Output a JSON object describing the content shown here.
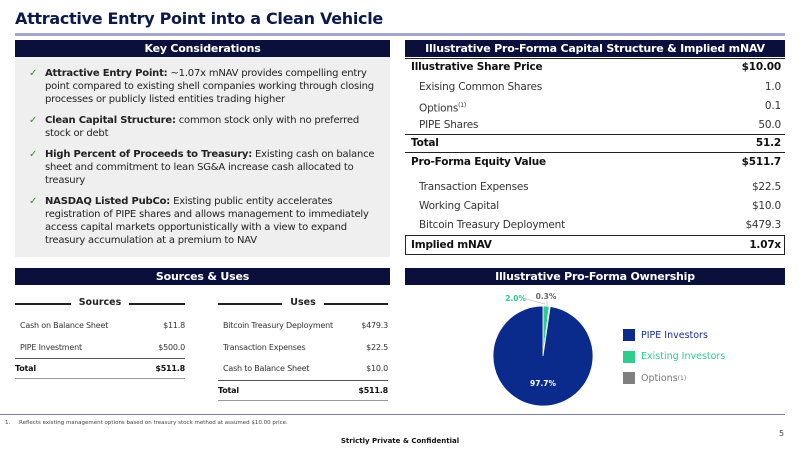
{
  "title": "Attractive Entry Point into a Clean Vehicle",
  "key_considerations": {
    "header": "Key Considerations",
    "items": [
      {
        "bold": "Attractive Entry Point:",
        "text": " ~1.07x mNAV provides compelling entry point compared to existing shell companies working through closing processes or publicly listed entities trading higher"
      },
      {
        "bold": "Clean Capital Structure:",
        "text": " common stock only with no preferred stock or debt"
      },
      {
        "bold": "High Percent of Proceeds to Treasury:",
        "text": " Existing cash on balance sheet and commitment to lean SG&A increase cash allocated to treasury"
      },
      {
        "bold": "NASDAQ Listed PubCo:",
        "text": " Existing public entity accelerates registration of PIPE shares and allows management to immediately access capital markets opportunistically with a view to expand treasury accumulation at a premium to NAV"
      }
    ]
  },
  "capital": {
    "header": "Illustrative Pro-Forma Capital Structure & Implied mNAV",
    "rows": [
      {
        "label": "Illustrative Share Price",
        "value": "$10.00"
      },
      {
        "label": "Exising Common Shares",
        "value": "1.0"
      },
      {
        "label": "Options",
        "sup": "(1)",
        "value": "0.1"
      },
      {
        "label": "PIPE Shares",
        "value": "50.0"
      },
      {
        "label": "Total",
        "value": "51.2"
      },
      {
        "label": "Pro-Forma Equity Value",
        "value": "$511.7"
      },
      {
        "label": "Transaction Expenses",
        "value": "$22.5"
      },
      {
        "label": "Working Capital",
        "value": "$10.0"
      },
      {
        "label": "Bitcoin Treasury Deployment",
        "value": "$479.3"
      },
      {
        "label": "Implied mNAV",
        "value": "1.07x"
      }
    ]
  },
  "sources_uses": {
    "header": "Sources & Uses",
    "sources": {
      "title": "Sources",
      "rows": [
        {
          "label": "Cash on Balance Sheet",
          "value": "$11.8"
        },
        {
          "label": "PIPE Investment",
          "value": "$500.0"
        }
      ],
      "total": {
        "label": "Total",
        "value": "$511.8"
      }
    },
    "uses": {
      "title": "Uses",
      "rows": [
        {
          "label": "Bitcoin Treasury Deployment",
          "value": "$479.3"
        },
        {
          "label": "Transaction Expenses",
          "value": "$22.5"
        },
        {
          "label": "Cash to Balance Sheet",
          "value": "$10.0"
        }
      ],
      "total": {
        "label": "Total",
        "value": "$511.8"
      }
    }
  },
  "ownership": {
    "header": "Illustrative Pro-Forma Ownership"
  },
  "chart_data": {
    "type": "pie",
    "title": "Illustrative Pro-Forma Ownership",
    "legend": "right",
    "slices": [
      {
        "name": "PIPE Investors",
        "value": 97.7,
        "label": "97.7%",
        "color": "#0a2a8c"
      },
      {
        "name": "Existing Investors",
        "value": 2.0,
        "label": "2.0%",
        "color": "#2ecc8f"
      },
      {
        "name": "Options",
        "sup": "(1)",
        "value": 0.3,
        "label": "0.3%",
        "color": "#7f7f7f"
      }
    ]
  },
  "footnote": {
    "num": "1.",
    "text": "Reflects existing management options based on treasury stock method at assumed $10.00 price."
  },
  "footer": "Strictly Private & Confidential",
  "page_number": "5"
}
